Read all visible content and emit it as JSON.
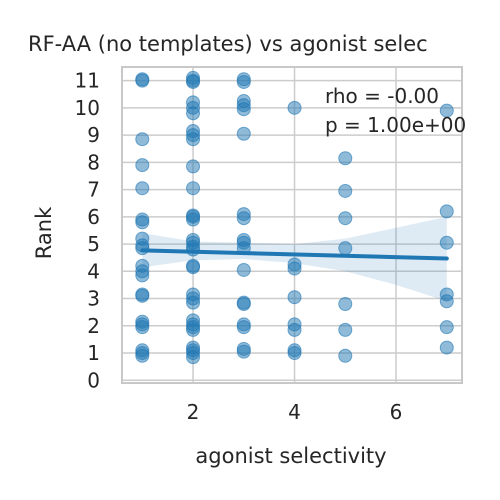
{
  "chart_data": {
    "type": "scatter",
    "title": "RF-AA (no templates) vs agonist selec",
    "xlabel": "agonist selectivity",
    "ylabel": "Rank",
    "xlim": [
      0.6,
      7.3
    ],
    "ylim": [
      -0.1,
      11.5
    ],
    "x_ticks": [
      2,
      4,
      6
    ],
    "y_ticks": [
      0,
      1,
      2,
      3,
      4,
      5,
      6,
      7,
      8,
      9,
      10,
      11
    ],
    "grid": true,
    "annotations": [
      "rho = -0.00",
      "p = 1.00e+00"
    ],
    "colors": {
      "points": "#1f77b4",
      "regression_line": "#1f77b4",
      "confidence_band": "#1f77b4",
      "grid": "#cccccc",
      "spine": "#c8c8c8"
    },
    "points": [
      [
        1,
        11.05
      ],
      [
        1,
        11.0
      ],
      [
        1,
        8.85
      ],
      [
        1,
        7.9
      ],
      [
        1,
        7.05
      ],
      [
        1,
        5.9
      ],
      [
        1,
        5.8
      ],
      [
        1,
        5.2
      ],
      [
        1,
        4.95
      ],
      [
        1,
        4.85
      ],
      [
        1,
        4.2
      ],
      [
        1,
        4.0
      ],
      [
        1,
        3.85
      ],
      [
        1,
        3.15
      ],
      [
        1,
        3.1
      ],
      [
        1,
        2.15
      ],
      [
        1,
        2.05
      ],
      [
        1,
        1.95
      ],
      [
        1,
        1.1
      ],
      [
        1,
        1.0
      ],
      [
        1,
        0.9
      ],
      [
        2,
        11.1
      ],
      [
        2,
        11.0
      ],
      [
        2,
        10.95
      ],
      [
        2,
        10.2
      ],
      [
        2,
        10.0
      ],
      [
        2,
        9.8
      ],
      [
        2,
        9.15
      ],
      [
        2,
        9.0
      ],
      [
        2,
        8.85
      ],
      [
        2,
        7.85
      ],
      [
        2,
        7.05
      ],
      [
        2,
        6.05
      ],
      [
        2,
        6.0
      ],
      [
        2,
        5.9
      ],
      [
        2,
        5.15
      ],
      [
        2,
        5.05
      ],
      [
        2,
        4.9
      ],
      [
        2,
        4.8
      ],
      [
        2,
        4.2
      ],
      [
        2,
        4.15
      ],
      [
        2,
        3.15
      ],
      [
        2,
        3.0
      ],
      [
        2,
        2.85
      ],
      [
        2,
        2.2
      ],
      [
        2,
        2.05
      ],
      [
        2,
        1.95
      ],
      [
        2,
        1.85
      ],
      [
        2,
        1.2
      ],
      [
        2,
        1.1
      ],
      [
        2,
        1.0
      ],
      [
        2,
        0.85
      ],
      [
        3,
        11.05
      ],
      [
        3,
        10.95
      ],
      [
        3,
        10.25
      ],
      [
        3,
        10.1
      ],
      [
        3,
        9.95
      ],
      [
        3,
        9.05
      ],
      [
        3,
        6.1
      ],
      [
        3,
        5.95
      ],
      [
        3,
        5.15
      ],
      [
        3,
        5.05
      ],
      [
        3,
        4.85
      ],
      [
        3,
        4.05
      ],
      [
        3,
        2.85
      ],
      [
        3,
        2.8
      ],
      [
        3,
        2.05
      ],
      [
        3,
        1.95
      ],
      [
        3,
        1.15
      ],
      [
        3,
        1.05
      ],
      [
        4,
        10.0
      ],
      [
        4,
        4.25
      ],
      [
        4,
        4.1
      ],
      [
        4,
        3.05
      ],
      [
        4,
        2.05
      ],
      [
        4,
        1.85
      ],
      [
        4,
        1.1
      ],
      [
        4,
        1.0
      ],
      [
        5,
        8.15
      ],
      [
        5,
        6.95
      ],
      [
        5,
        5.95
      ],
      [
        5,
        4.85
      ],
      [
        5,
        2.8
      ],
      [
        5,
        1.85
      ],
      [
        5,
        0.9
      ],
      [
        7,
        9.9
      ],
      [
        7,
        6.2
      ],
      [
        7,
        5.05
      ],
      [
        7,
        3.15
      ],
      [
        7,
        2.9
      ],
      [
        7,
        1.95
      ],
      [
        7,
        1.2
      ]
    ],
    "regression": {
      "x": [
        1,
        7
      ],
      "y": [
        4.77,
        4.47
      ]
    },
    "confidence_band": {
      "x": [
        1,
        2,
        3,
        4,
        5,
        6,
        7
      ],
      "lower": [
        4.15,
        4.4,
        4.45,
        4.3,
        4.0,
        3.5,
        2.9
      ],
      "upper": [
        5.4,
        5.1,
        5.05,
        5.0,
        5.2,
        5.6,
        6.0
      ]
    }
  }
}
